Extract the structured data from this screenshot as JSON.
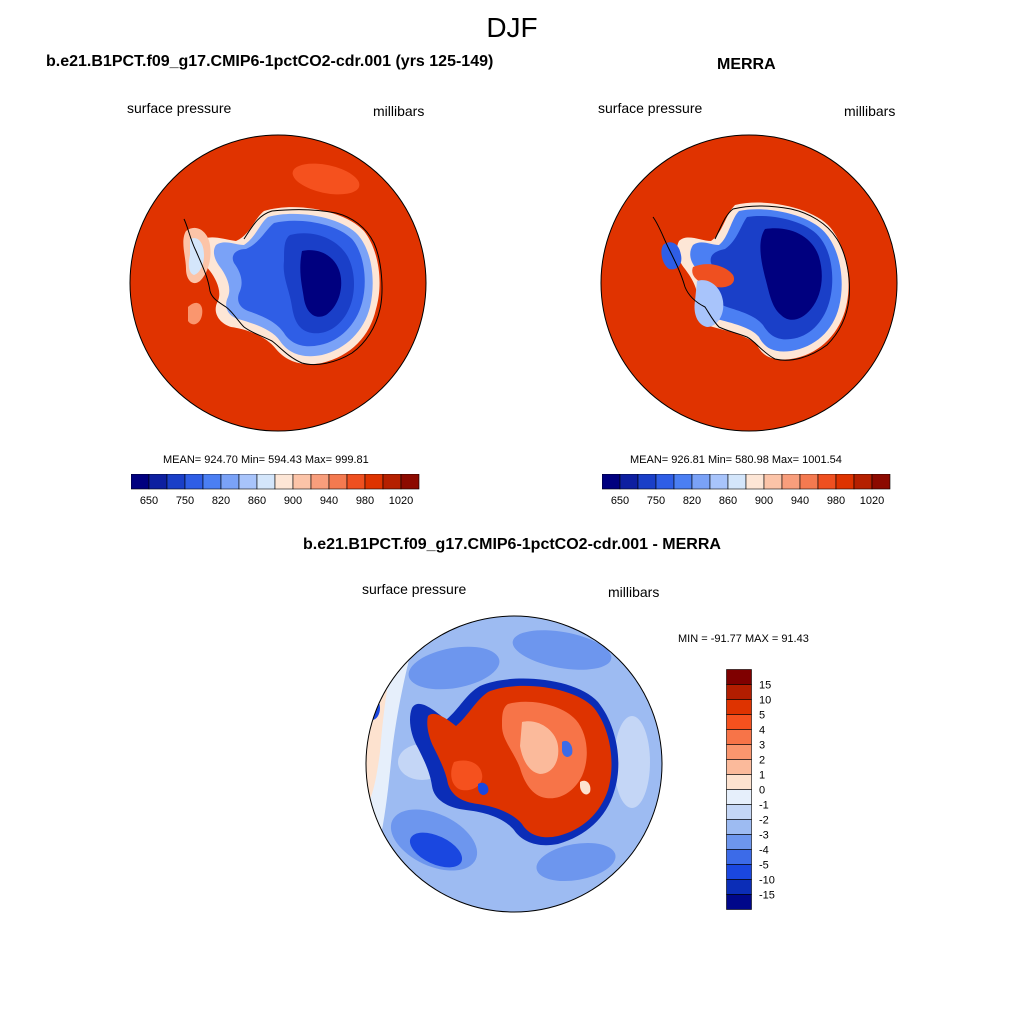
{
  "page": {
    "title": "DJF"
  },
  "panels": {
    "model": {
      "title": "b.e21.B1PCT.f09_g17.CMIP6-1pctCO2-cdr.001 (yrs 125-149)",
      "left_label": "surface pressure",
      "right_label": "millibars",
      "stats": "MEAN= 924.70  Min= 594.43  Max= 999.81"
    },
    "obs": {
      "title": "MERRA",
      "left_label": "surface pressure",
      "right_label": "millibars",
      "stats": "MEAN= 926.81  Min= 580.98  Max= 1001.54"
    },
    "diff": {
      "title": "b.e21.B1PCT.f09_g17.CMIP6-1pctCO2-cdr.001 - MERRA",
      "left_label": "surface pressure",
      "right_label": "millibars",
      "stats": "MIN = -91.77 MAX =  91.43"
    }
  },
  "colorbars": {
    "pressure": {
      "colors": [
        "#00007f",
        "#0d1fa0",
        "#1a3fc8",
        "#2f5ee6",
        "#4b7ff3",
        "#7aa2f7",
        "#a8c4fb",
        "#d4e6fb",
        "#fde6d6",
        "#fcc4a8",
        "#f89e7c",
        "#f47a50",
        "#ef5020",
        "#de3300",
        "#b52000",
        "#8c0a00"
      ],
      "labels": [
        "650",
        "750",
        "820",
        "860",
        "900",
        "940",
        "980",
        "1020"
      ]
    },
    "diff": {
      "colors": [
        "#7f0000",
        "#b21d00",
        "#de3300",
        "#f5511e",
        "#f77448",
        "#fa966e",
        "#fbba9b",
        "#fde2cf",
        "#e6effb",
        "#c4d6f6",
        "#9dbbf2",
        "#6d96ee",
        "#3c6be8",
        "#1a47e0",
        "#0b2db7",
        "#00078a"
      ],
      "labels": [
        "15",
        "10",
        "5",
        "4",
        "3",
        "2",
        "1",
        "0",
        "-1",
        "-2",
        "-3",
        "-4",
        "-5",
        "-10",
        "-15"
      ]
    }
  }
}
